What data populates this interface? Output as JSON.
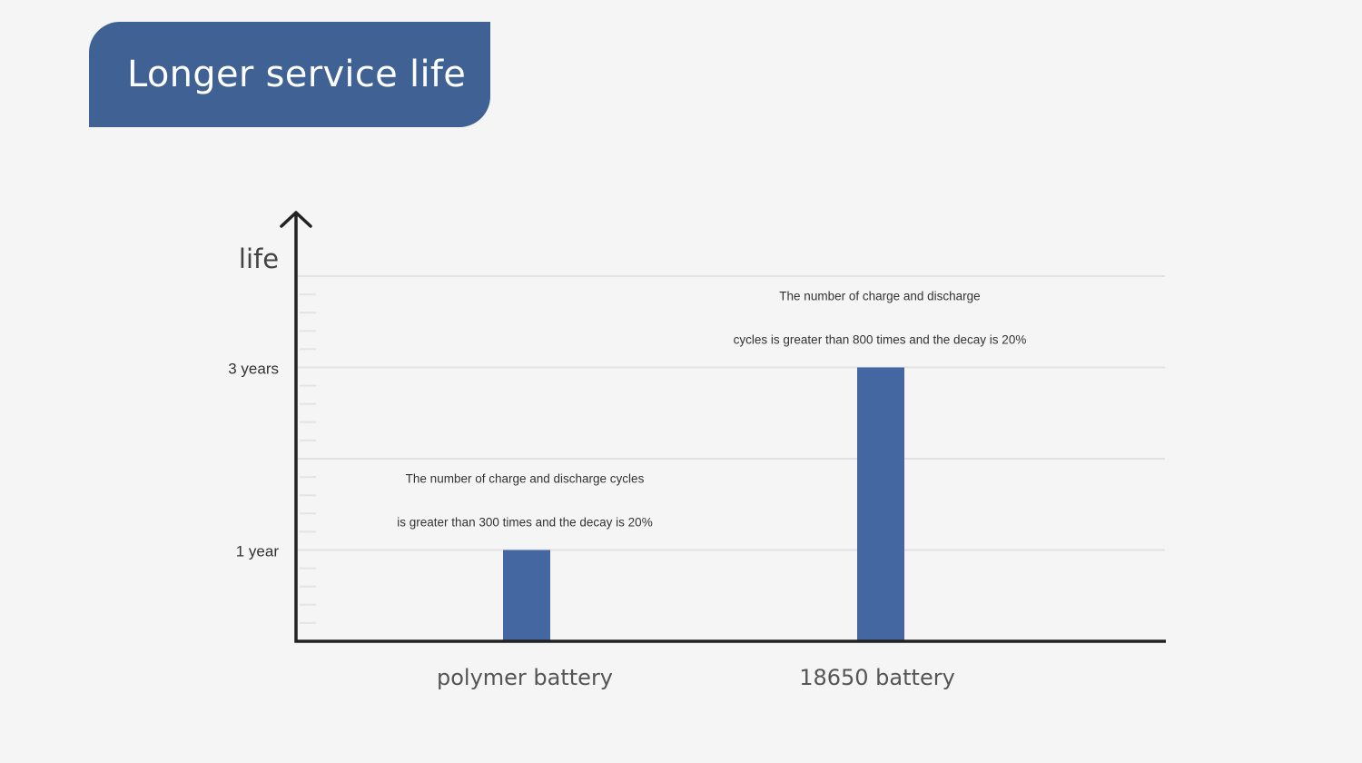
{
  "title": "Longer service life",
  "colors": {
    "banner": "#3f6193",
    "bar": "#4467a1",
    "axis": "#222222",
    "grid": "#e2e2e2"
  },
  "chart_data": {
    "type": "bar",
    "ylabel": "life",
    "xlabel": "",
    "yunit": "years",
    "ylim": [
      0,
      4
    ],
    "yticks": [
      {
        "value": 1,
        "label": "1 year"
      },
      {
        "value": 3,
        "label": "3 years"
      }
    ],
    "grid": true,
    "categories": [
      "polymer battery",
      "18650 battery"
    ],
    "values": [
      1,
      3
    ],
    "annotations": [
      {
        "category": "polymer battery",
        "lines": [
          "The number of charge and discharge cycles",
          "is greater than 300 times and the decay is 20%"
        ]
      },
      {
        "category": "18650 battery",
        "lines": [
          "The number of charge and discharge",
          "cycles is greater than 800 times and the decay is 20%"
        ]
      }
    ]
  }
}
